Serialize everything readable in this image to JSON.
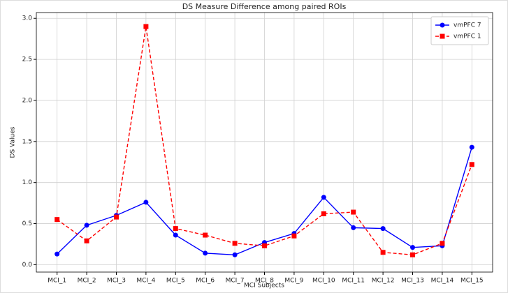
{
  "chart_data": {
    "type": "line",
    "title": "DS Measure Difference among paired ROIs",
    "xlabel": "MCI Subjects",
    "ylabel": "DS Values",
    "categories": [
      "MCI_1",
      "MCI_2",
      "MCI_3",
      "MCI_4",
      "MCI_5",
      "MCI_6",
      "MCI_7",
      "MCI_8",
      "MCI_9",
      "MCI_10",
      "MCI_11",
      "MCI_12",
      "MCI_13",
      "MCI_14",
      "MCI_15"
    ],
    "series": [
      {
        "name": "vmPFC 7",
        "color": "#0000ff",
        "marker": "circle",
        "dash": "solid",
        "values": [
          0.13,
          0.48,
          0.6,
          0.76,
          0.36,
          0.14,
          0.12,
          0.27,
          0.38,
          0.82,
          0.45,
          0.44,
          0.21,
          0.23,
          1.43
        ]
      },
      {
        "name": "vmPFC 1",
        "color": "#ff0000",
        "marker": "square",
        "dash": "dashed",
        "values": [
          0.55,
          0.29,
          0.58,
          2.9,
          0.44,
          0.36,
          0.26,
          0.23,
          0.35,
          0.62,
          0.64,
          0.15,
          0.12,
          0.26,
          1.22
        ]
      }
    ],
    "ylim": [
      -0.09,
      3.07
    ],
    "yticks": [
      {
        "value": 0,
        "label": "0.0"
      },
      0.5,
      {
        "value": 1,
        "label": "1.0"
      },
      1.5,
      {
        "value": 2,
        "label": "2.0"
      },
      2.5,
      {
        "value": 3,
        "label": "3.0"
      }
    ],
    "grid": true,
    "legend": "upper right"
  }
}
